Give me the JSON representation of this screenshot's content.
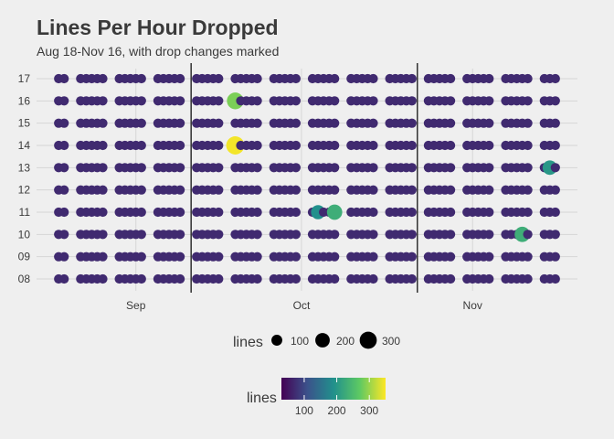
{
  "chart_data": {
    "type": "scatter",
    "title": "Lines Per Hour Dropped",
    "subtitle": "Aug 18-Nov 16, with drop changes marked",
    "x_range": [
      "2016-08-14",
      "2016-11-20"
    ],
    "x_ticks": [
      {
        "date": "2016-09-01",
        "label": "Sep"
      },
      {
        "date": "2016-10-01",
        "label": "Oct"
      },
      {
        "date": "2016-11-01",
        "label": "Nov"
      }
    ],
    "y_categories": [
      "08",
      "09",
      "10",
      "11",
      "12",
      "13",
      "14",
      "15",
      "16",
      "17"
    ],
    "grid": true,
    "drop_changes": [
      "2016-09-11",
      "2016-10-22"
    ],
    "date_range": [
      "2016-08-18",
      "2016-11-16"
    ],
    "typical_lines": 70,
    "highlights": [
      {
        "date": "2016-09-19",
        "hour": "16",
        "lines": 285
      },
      {
        "date": "2016-09-19",
        "hour": "14",
        "lines": 345
      },
      {
        "date": "2016-10-07",
        "hour": "11",
        "lines": 230
      },
      {
        "date": "2016-10-04",
        "hour": "11",
        "lines": 190
      },
      {
        "date": "2016-11-10",
        "hour": "10",
        "lines": 230
      },
      {
        "date": "2016-11-15",
        "hour": "13",
        "lines": 200
      }
    ],
    "size_legend": {
      "title": "lines",
      "values": [
        100,
        200,
        300
      ],
      "labels": [
        "100",
        "200",
        "300"
      ]
    },
    "color_legend": {
      "title": "lines",
      "labels": [
        "100",
        "200",
        "300"
      ],
      "values": [
        100,
        200,
        300
      ],
      "colors": [
        "#440154",
        "#3b528b",
        "#21908c",
        "#5dc963",
        "#fde725"
      ],
      "domain": [
        30,
        350
      ]
    },
    "line_color": "#000000"
  }
}
